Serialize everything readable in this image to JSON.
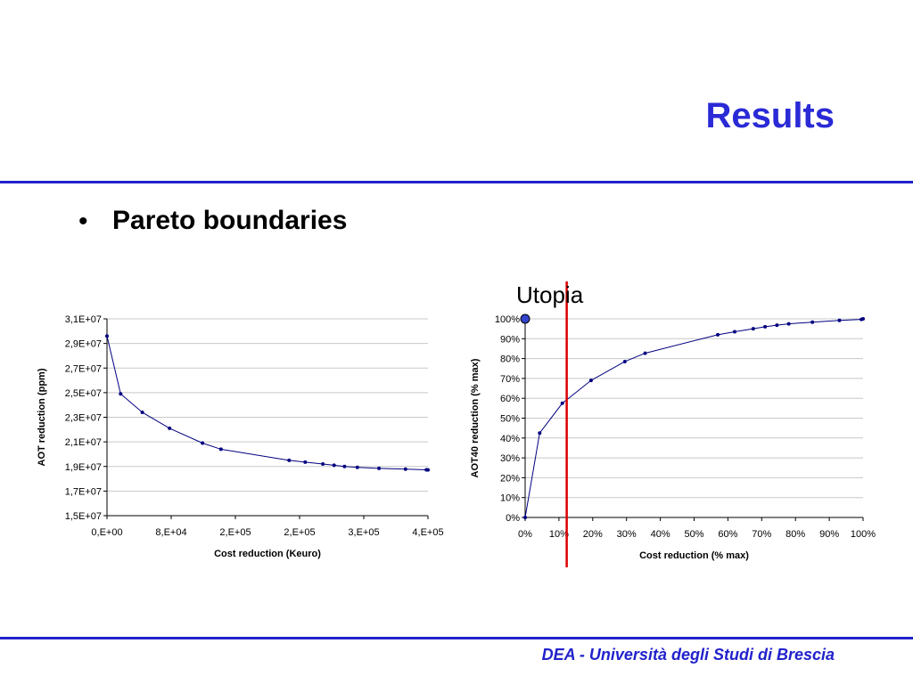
{
  "slide": {
    "title": "Results",
    "bullet_symbol": "•",
    "bullet": "Pareto boundaries",
    "utopia_label": "Utopia",
    "footer": "DEA - Università degli Studi di Brescia"
  },
  "colors": {
    "title": "#2a2ad6",
    "rule": "#2222cc",
    "series": "#000080",
    "marker_line": "#dd0000"
  },
  "chart_data": [
    {
      "type": "line",
      "title": "",
      "xlabel": "Cost reduction (Keuro)",
      "ylabel": "AOT reduction (ppm)",
      "xlim": [
        0,
        400000
      ],
      "ylim": [
        15000000,
        31000000
      ],
      "grid": true,
      "x_ticks": [
        0,
        80000,
        160000,
        240000,
        320000,
        400000
      ],
      "x_tick_labels": [
        "0,E+00",
        "8,E+04",
        "2,E+05",
        "2,E+05",
        "3,E+05",
        "4,E+05"
      ],
      "y_ticks": [
        15000000,
        17000000,
        19000000,
        21000000,
        23000000,
        25000000,
        27000000,
        29000000,
        31000000
      ],
      "y_tick_labels": [
        "1,5E+07",
        "1,7E+07",
        "1,9E+07",
        "2,1E+07",
        "2,3E+07",
        "2,5E+07",
        "2,7E+07",
        "2,9E+07",
        "3,1E+07"
      ],
      "series": [
        {
          "x": [
            0,
            17000,
            44000,
            78000,
            119000,
            142000,
            227000,
            247000,
            269000,
            283000,
            296000,
            312000,
            339000,
            372000,
            398000,
            400000
          ],
          "y": [
            29600000,
            24900000,
            23400000,
            22100000,
            20900000,
            20400000,
            19500000,
            19350000,
            19200000,
            19100000,
            19000000,
            18930000,
            18850000,
            18780000,
            18730000,
            18720000
          ]
        }
      ]
    },
    {
      "type": "line",
      "title": "",
      "xlabel": "Cost reduction (% max)",
      "ylabel": "AOT40 reduction (% max)",
      "xlim": [
        0,
        100
      ],
      "ylim": [
        0,
        100
      ],
      "grid": true,
      "x_ticks": [
        0,
        10,
        20,
        30,
        40,
        50,
        60,
        70,
        80,
        90,
        100
      ],
      "x_tick_labels": [
        "0%",
        "10%",
        "20%",
        "30%",
        "40%",
        "50%",
        "60%",
        "70%",
        "80%",
        "90%",
        "100%"
      ],
      "y_ticks": [
        0,
        10,
        20,
        30,
        40,
        50,
        60,
        70,
        80,
        90,
        100
      ],
      "y_tick_labels": [
        "0%",
        "10%",
        "20%",
        "30%",
        "40%",
        "50%",
        "60%",
        "70%",
        "80%",
        "90%",
        "100%"
      ],
      "utopia_point": [
        0,
        100
      ],
      "vertical_marker_x": 12.3,
      "series": [
        {
          "x": [
            0,
            4.3,
            11,
            19.5,
            29.5,
            35.5,
            57,
            62,
            67.5,
            71,
            74.5,
            78,
            85,
            93,
            99.5,
            100
          ],
          "y": [
            0,
            42.5,
            57.5,
            69,
            78.5,
            82.7,
            92,
            93.5,
            95,
            96,
            96.8,
            97.5,
            98.3,
            99.2,
            99.7,
            100
          ]
        }
      ]
    }
  ]
}
